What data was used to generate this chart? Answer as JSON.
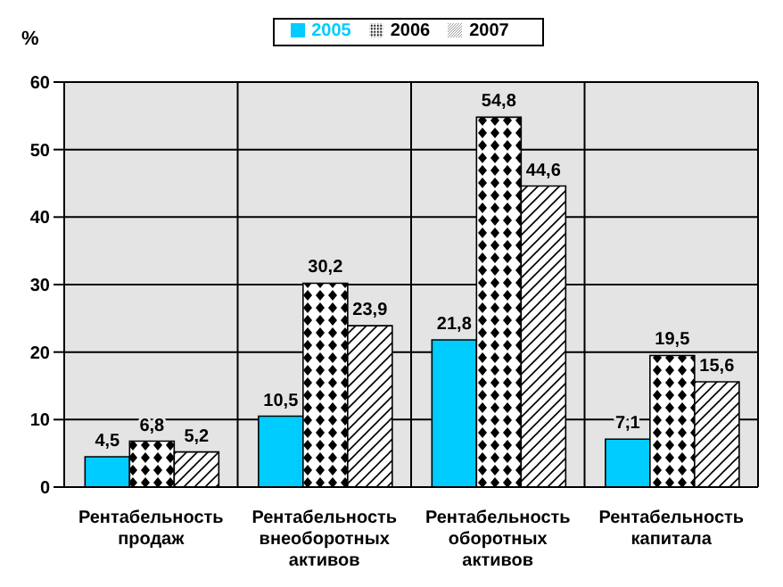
{
  "chart_data": {
    "type": "bar",
    "ylabel": "%",
    "categories": [
      "Рентабельность продаж",
      "Рентабельность внеоборотных активов",
      "Рентабельность оборотных активов",
      "Рентабельность капитала"
    ],
    "series": [
      {
        "name": "2005",
        "color": "#00ccff",
        "values": [
          4.5,
          10.5,
          21.8,
          7.1
        ],
        "value_labels": [
          "4,5",
          "10,5",
          "21,8",
          "7,1"
        ]
      },
      {
        "name": "2006",
        "color": "#000000",
        "values": [
          6.8,
          30.2,
          54.8,
          19.5
        ],
        "value_labels": [
          "6,8",
          "30,2",
          "54,8",
          "19,5"
        ]
      },
      {
        "name": "2007",
        "color": "#000000",
        "values": [
          5.2,
          23.9,
          44.6,
          15.6
        ],
        "value_labels": [
          "5,2",
          "23,9",
          "44,6",
          "15,6"
        ]
      }
    ],
    "ylim": [
      0,
      60
    ],
    "yticks": [
      0,
      10,
      20,
      30,
      40,
      50,
      60
    ],
    "grid": true,
    "legend": "top"
  }
}
